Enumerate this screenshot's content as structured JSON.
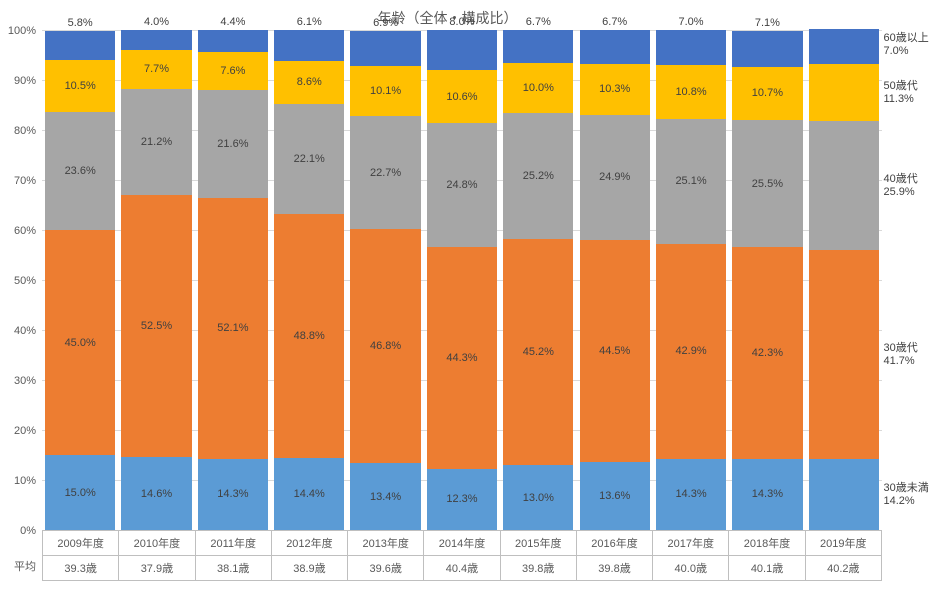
{
  "title": "年齢（全体・構成比）",
  "background_color": "#ffffff",
  "grid_color": "#d9d9d9",
  "text_color": "#595959",
  "data_label_color": "#404040",
  "title_fontsize": 14,
  "label_fontsize": 11,
  "y_axis": {
    "min": 0,
    "max": 100,
    "ticks": [
      0,
      10,
      20,
      30,
      40,
      50,
      60,
      70,
      80,
      90,
      100
    ],
    "format_suffix": "%"
  },
  "series": [
    {
      "key": "under30",
      "label": "30歳未満",
      "color": "#5b9bd5"
    },
    {
      "key": "s30",
      "label": "30歳代",
      "color": "#ed7d31"
    },
    {
      "key": "s40",
      "label": "40歳代",
      "color": "#a6a6a6"
    },
    {
      "key": "s50",
      "label": "50歳代",
      "color": "#ffc000"
    },
    {
      "key": "s60",
      "label": "60歳以上",
      "color": "#4472c4"
    }
  ],
  "categories": [
    {
      "year": "2009年度",
      "avg": "39.3歳",
      "under30": 15.0,
      "s30": 45.0,
      "s40": 23.6,
      "s50": 10.5,
      "s60": 5.8
    },
    {
      "year": "2010年度",
      "avg": "37.9歳",
      "under30": 14.6,
      "s30": 52.5,
      "s40": 21.2,
      "s50": 7.7,
      "s60": 4.0
    },
    {
      "year": "2011年度",
      "avg": "38.1歳",
      "under30": 14.3,
      "s30": 52.1,
      "s40": 21.6,
      "s50": 7.6,
      "s60": 4.4
    },
    {
      "year": "2012年度",
      "avg": "38.9歳",
      "under30": 14.4,
      "s30": 48.8,
      "s40": 22.1,
      "s50": 8.6,
      "s60": 6.1
    },
    {
      "year": "2013年度",
      "avg": "39.6歳",
      "under30": 13.4,
      "s30": 46.8,
      "s40": 22.7,
      "s50": 10.1,
      "s60": 6.9
    },
    {
      "year": "2014年度",
      "avg": "40.4歳",
      "under30": 12.3,
      "s30": 44.3,
      "s40": 24.8,
      "s50": 10.6,
      "s60": 8.0
    },
    {
      "year": "2015年度",
      "avg": "39.8歳",
      "under30": 13.0,
      "s30": 45.2,
      "s40": 25.2,
      "s50": 10.0,
      "s60": 6.7
    },
    {
      "year": "2016年度",
      "avg": "39.8歳",
      "under30": 13.6,
      "s30": 44.5,
      "s40": 24.9,
      "s50": 10.3,
      "s60": 6.7
    },
    {
      "year": "2017年度",
      "avg": "40.0歳",
      "under30": 14.3,
      "s30": 42.9,
      "s40": 25.1,
      "s50": 10.8,
      "s60": 7.0
    },
    {
      "year": "2018年度",
      "avg": "40.1歳",
      "under30": 14.3,
      "s30": 42.3,
      "s40": 25.5,
      "s50": 10.7,
      "s60": 7.1
    },
    {
      "year": "2019年度",
      "avg": "40.2歳",
      "under30": 14.2,
      "s30": 41.7,
      "s40": 25.9,
      "s50": 11.3,
      "s60": 7.0
    }
  ],
  "avg_row_label": "平均",
  "last_col_style": "labels_right",
  "bar_width_pct": 92,
  "small_segment_threshold": 9.0
}
